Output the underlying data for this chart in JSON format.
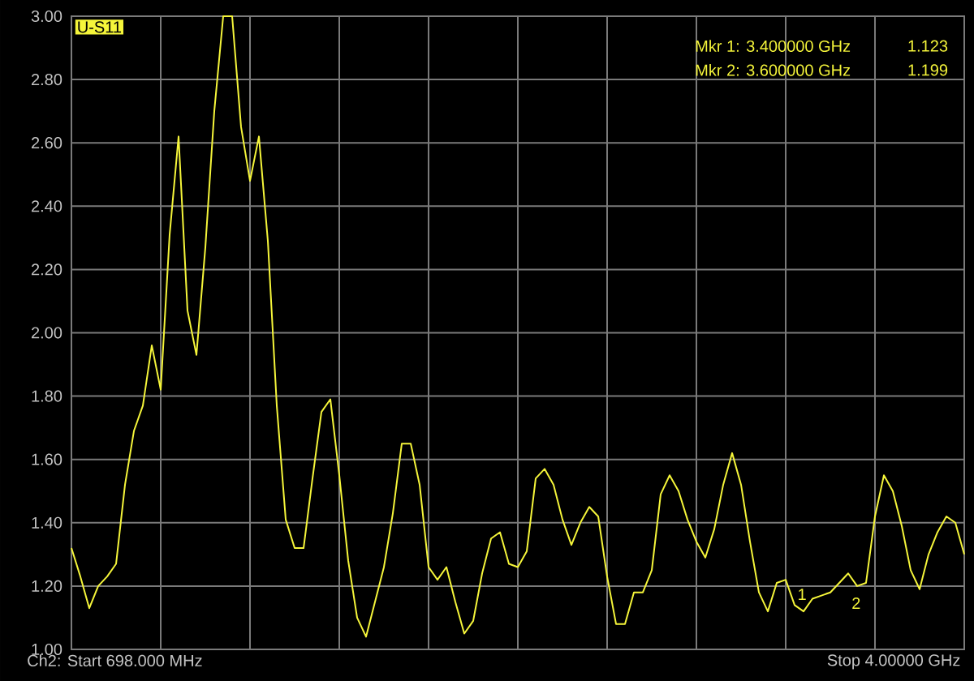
{
  "chart_data": {
    "type": "line",
    "title": "U-S11",
    "categories": [
      null,
      null,
      null,
      null,
      null,
      null,
      null,
      null,
      null,
      null,
      null,
      null,
      null,
      null,
      null,
      null,
      null,
      null,
      null,
      null,
      null,
      null,
      null,
      null,
      null,
      null,
      null,
      null,
      null,
      null,
      null,
      null,
      null,
      null,
      null,
      null,
      null,
      null,
      null,
      null,
      null,
      null,
      null,
      null,
      null,
      null,
      null,
      null,
      null,
      null,
      null,
      null,
      null,
      null,
      null,
      null,
      null,
      null,
      null,
      null,
      null,
      null,
      null,
      null,
      null,
      null,
      null,
      null,
      null,
      null,
      null,
      null,
      null,
      null,
      null,
      null,
      null,
      null,
      null,
      null,
      null,
      null,
      null,
      null,
      null,
      null,
      null,
      null,
      null,
      null,
      null,
      null,
      null,
      null,
      null,
      null,
      null,
      null,
      null,
      null,
      null
    ],
    "values": [
      1.32,
      1.23,
      1.13,
      1.2,
      1.23,
      1.27,
      1.52,
      1.69,
      1.77,
      1.96,
      1.82,
      2.31,
      2.62,
      2.07,
      1.93,
      2.27,
      2.7,
      3.0,
      3.0,
      2.65,
      2.48,
      2.62,
      2.29,
      1.77,
      1.41,
      1.32,
      1.32,
      1.54,
      1.75,
      1.79,
      1.55,
      1.28,
      1.1,
      1.04,
      1.15,
      1.26,
      1.43,
      1.65,
      1.65,
      1.52,
      1.26,
      1.22,
      1.26,
      1.15,
      1.05,
      1.09,
      1.24,
      1.35,
      1.37,
      1.27,
      1.26,
      1.31,
      1.54,
      1.57,
      1.52,
      1.41,
      1.33,
      1.4,
      1.45,
      1.42,
      1.23,
      1.08,
      1.08,
      1.18,
      1.18,
      1.25,
      1.49,
      1.55,
      1.5,
      1.41,
      1.34,
      1.29,
      1.38,
      1.52,
      1.62,
      1.52,
      1.34,
      1.18,
      1.12,
      1.21,
      1.22,
      1.14,
      1.12,
      1.16,
      1.17,
      1.18,
      1.21,
      1.24,
      1.2,
      1.21,
      1.42,
      1.55,
      1.5,
      1.39,
      1.25,
      1.19,
      1.3,
      1.37,
      1.42,
      1.4,
      1.3
    ],
    "color": "#f5f53a",
    "marker": "none",
    "line_style": "solid",
    "grid": true,
    "ylim": [
      1.0,
      3.0
    ],
    "yticks": [
      {
        "value": 1.0,
        "label": "1.00"
      },
      {
        "value": 1.2,
        "label": "1.20"
      },
      {
        "value": 1.4,
        "label": "1.40"
      },
      {
        "value": 1.6,
        "label": "1.60"
      },
      {
        "value": 1.8,
        "label": "1.80"
      },
      {
        "value": 2.0,
        "label": "2.00"
      },
      {
        "value": 2.2,
        "label": "2.20"
      },
      {
        "value": 2.4,
        "label": "2.40"
      },
      {
        "value": 2.6,
        "label": "2.60"
      },
      {
        "value": 2.8,
        "label": "2.80"
      },
      {
        "value": 3.0,
        "label": "3.00"
      }
    ],
    "annotations": [
      "Ch2: Start  698.000 MHz",
      "Stop  4.00000 GHz",
      "Mkr 1:  3.400000 GHz",
      "1.123",
      "Mkr 2:  3.600000 GHz",
      "1.199",
      "1",
      "2"
    ]
  }
}
